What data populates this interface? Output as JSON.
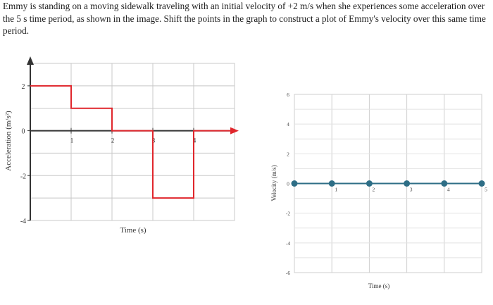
{
  "question": {
    "text": "Emmy is standing on a moving sidewalk traveling with an initial velocity of +2 m/s when she experiences some acceleration over the 5 s time period, as shown in the image. Shift the points in the graph to construct a plot of Emmy's velocity over this same time period."
  },
  "chart_data": [
    {
      "type": "line",
      "title": "",
      "xlabel": "Time (s)",
      "ylabel": "Acceleration (m/s²)",
      "xlim": [
        0,
        5
      ],
      "ylim": [
        -4,
        3
      ],
      "x_ticks": [
        "1",
        "2",
        "3",
        "4"
      ],
      "y_ticks": [
        "2",
        "0",
        "-2",
        "-4"
      ],
      "grid": true,
      "series": [
        {
          "color": "#e0262c",
          "x": [
            0,
            1,
            1,
            2,
            2,
            3,
            3,
            4,
            4,
            5
          ],
          "y": [
            2,
            2,
            1,
            1,
            0,
            0,
            -3,
            -3,
            0,
            0
          ]
        }
      ]
    },
    {
      "type": "scatter",
      "title": "",
      "xlabel": "Time (s)",
      "ylabel": "Velocity (m/s)",
      "xlim": [
        0,
        5
      ],
      "ylim": [
        -6,
        6
      ],
      "x_ticks": [
        "1",
        "2",
        "3",
        "4",
        "5"
      ],
      "y_ticks": [
        "6",
        "4",
        "2",
        "0",
        "-2",
        "-4",
        "-6"
      ],
      "grid": true,
      "series": [
        {
          "color": "#2e6e86",
          "x": [
            0,
            1,
            2,
            3,
            4,
            5
          ],
          "y": [
            0,
            0,
            0,
            0,
            0,
            0
          ]
        }
      ]
    }
  ]
}
